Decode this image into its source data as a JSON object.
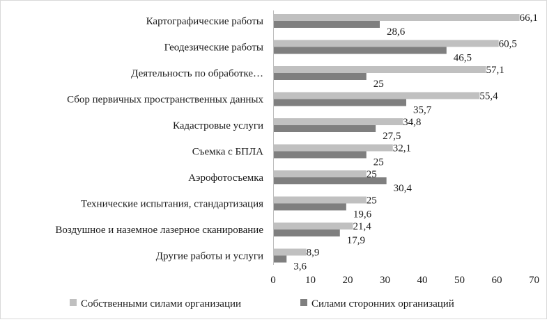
{
  "chart_data": {
    "type": "bar",
    "orientation": "horizontal",
    "title": "",
    "xlabel": "",
    "ylabel": "",
    "xlim": [
      0,
      70
    ],
    "x_ticks": [
      0,
      10,
      20,
      30,
      40,
      50,
      60,
      70
    ],
    "grid": false,
    "legend_position": "bottom",
    "categories": [
      "Картографические работы",
      "Геодезические работы",
      "Деятельность по обработке…",
      "Сбор первичных пространственных данных",
      "Кадастровые услуги",
      "Съемка с БПЛА",
      "Аэрофотосъемка",
      "Технические испытания, стандартизация",
      "Воздушное и наземное лазерное сканирование",
      "Другие работы и услуги"
    ],
    "series": [
      {
        "name": "Собственными силами организации",
        "color": "#c0c0c0",
        "values": [
          66.1,
          60.5,
          57.1,
          55.4,
          34.8,
          32.1,
          25,
          25,
          21.4,
          8.9
        ],
        "labels": [
          "66,1",
          "60,5",
          "57,1",
          "55,4",
          "34,8",
          "32,1",
          "25",
          "25",
          "21,4",
          "8,9"
        ]
      },
      {
        "name": "Силами сторонних организаций",
        "color": "#7f7f7f",
        "values": [
          28.6,
          46.5,
          25,
          35.7,
          27.5,
          25,
          30.4,
          19.6,
          17.9,
          3.6
        ],
        "labels": [
          "28,6",
          "46,5",
          "25",
          "35,7",
          "27,5",
          "25",
          "30,4",
          "19,6",
          "17,9",
          "3,6"
        ]
      }
    ]
  }
}
